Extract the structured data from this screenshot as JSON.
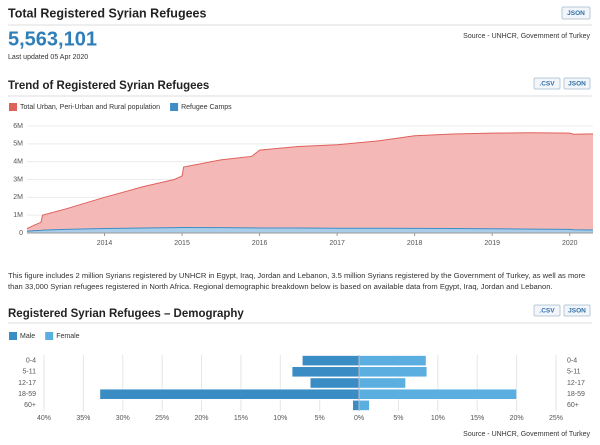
{
  "header": {
    "title": "Total Registered Syrian Refugees",
    "button": "JSON",
    "total": "5,563,101",
    "updated": "Last updated 05 Apr 2020",
    "source": "Source - UNHCR, Government of Turkey"
  },
  "trend_buttons": [
    ".CSV",
    "JSON"
  ],
  "note": "This figure includes 2 million Syrians registered by UNHCR in Egypt, Iraq, Jordan and Lebanon, 3.5 million Syrians registered by the Government of Turkey, as well as more than 33,000 Syrian refugees registered in North Africa. Regional demographic breakdown below is based on available data from Egypt, Iraq, Jordan and Lebanon.",
  "demography_buttons": [
    ".CSV",
    "JSON"
  ],
  "demography_source": "Source - UNHCR, Government of Turkey",
  "chart_data": [
    {
      "type": "area",
      "title": "Trend of Registered Syrian Refugees",
      "x": [
        2013.0,
        2013.1,
        2013.18,
        2013.2,
        2013.5,
        2014.0,
        2014.5,
        2014.9,
        2015.0,
        2015.02,
        2015.5,
        2015.9,
        2016.0,
        2016.5,
        2017.0,
        2017.5,
        2018.0,
        2018.5,
        2019.0,
        2019.5,
        2020.0,
        2020.05,
        2020.3
      ],
      "series": [
        {
          "name": "Total Urban, Peri-Urban and Rural population",
          "color": "#e0605c",
          "values": [
            250000,
            450000,
            600000,
            1000000,
            1350000,
            2000000,
            2600000,
            3000000,
            3200000,
            3700000,
            4100000,
            4300000,
            4650000,
            4850000,
            4950000,
            5150000,
            5450000,
            5550000,
            5600000,
            5620000,
            5600000,
            5540000,
            5560000
          ]
        },
        {
          "name": "Refugee Camps",
          "color": "#3e8dc5",
          "values": [
            100000,
            130000,
            150000,
            160000,
            200000,
            250000,
            280000,
            300000,
            310000,
            310000,
            300000,
            290000,
            280000,
            280000,
            270000,
            270000,
            260000,
            250000,
            240000,
            220000,
            200000,
            180000,
            170000
          ]
        }
      ],
      "xlim": [
        2013.0,
        2020.3
      ],
      "xticks": [
        2014,
        2015,
        2016,
        2017,
        2018,
        2019,
        2020
      ],
      "ylim": [
        0,
        6000000
      ],
      "yticks": [
        0,
        {
          "value": 1000000,
          "label": "1M"
        },
        {
          "value": 2000000,
          "label": "2M"
        },
        {
          "value": 3000000,
          "label": "3M"
        },
        {
          "value": 4000000,
          "label": "4M"
        },
        {
          "value": 5000000,
          "label": "5M"
        },
        {
          "value": 6000000,
          "label": "6M"
        }
      ],
      "grid": true
    },
    {
      "type": "butterfly",
      "title": "Registered Syrian Refugees – Demography",
      "categories": [
        "0-4",
        "5-11",
        "12-17",
        "18-59",
        "60+"
      ],
      "series": [
        {
          "name": "Male",
          "color": "#3a8cc4",
          "values": [
            7.2,
            8.5,
            6.2,
            32.9,
            0.8
          ]
        },
        {
          "name": "Female",
          "color": "#5aaee0",
          "values": [
            8.5,
            8.6,
            5.9,
            20.0,
            1.3
          ]
        }
      ],
      "xlim": [
        -40,
        25
      ],
      "xticks": [
        {
          "value": -40,
          "label": "40%"
        },
        {
          "value": -35,
          "label": "35%"
        },
        {
          "value": -30,
          "label": "30%"
        },
        {
          "value": -25,
          "label": "25%"
        },
        {
          "value": -20,
          "label": "20%"
        },
        {
          "value": -15,
          "label": "15%"
        },
        {
          "value": -10,
          "label": "10%"
        },
        {
          "value": -5,
          "label": "5%"
        },
        {
          "value": 0,
          "label": "0%"
        },
        {
          "value": 5,
          "label": "5%"
        },
        {
          "value": 10,
          "label": "10%"
        },
        {
          "value": 15,
          "label": "15%"
        },
        {
          "value": 20,
          "label": "20%"
        },
        {
          "value": 25,
          "label": "25%"
        }
      ],
      "grid": true
    }
  ]
}
